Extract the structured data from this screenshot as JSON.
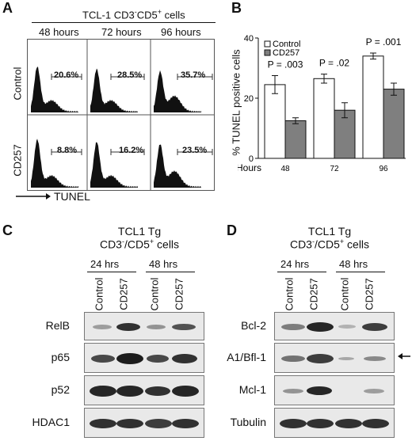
{
  "panelA": {
    "label": "A",
    "title_main": "TCL-1 CD3",
    "title_sup1": "-",
    "title_mid": "CD5",
    "title_sup2": "+",
    "title_end": "cells",
    "col_labels": [
      "48 hours",
      "72 hours",
      "96 hours"
    ],
    "row_labels": [
      "Control",
      "CD257"
    ],
    "percents": [
      [
        "20.6%",
        "28.5%",
        "35.7%"
      ],
      [
        "8.8%",
        "16.2%",
        "23.5%"
      ]
    ],
    "xaxis_label": "TUNEL"
  },
  "panelB": {
    "label": "B",
    "ylabel": "% TUNEL positive cells",
    "xlabel": "Hours",
    "legend": [
      "Control",
      "CD257"
    ],
    "p_values": [
      "P = .003",
      "P = .02",
      "P = .001"
    ],
    "ticks": [
      "0",
      "20",
      "40"
    ],
    "categories": [
      "48",
      "72",
      "96"
    ]
  },
  "chart_data": {
    "type": "bar",
    "categories": [
      "48",
      "72",
      "96"
    ],
    "series": [
      {
        "name": "Control",
        "values": [
          24.5,
          26.5,
          34
        ],
        "errors": [
          3,
          1.5,
          1
        ]
      },
      {
        "name": "CD257",
        "values": [
          12.5,
          16,
          23
        ],
        "errors": [
          1,
          2.5,
          2
        ]
      }
    ],
    "xlabel": "Hours",
    "ylabel": "% TUNEL positive cells",
    "ylim": [
      0,
      40
    ],
    "yticks": [
      0,
      20,
      40
    ],
    "annotations": [
      "P = .003",
      "P = .02",
      "P = .001"
    ],
    "legend_placement": "top-left",
    "colors": {
      "Control": "#ffffff",
      "CD257": "#7f7f7f"
    }
  },
  "panelC": {
    "label": "C",
    "title1": "TCL1 Tg",
    "title2_main": "CD3",
    "title2_sup1": "-",
    "title2_mid": "/CD5",
    "title2_sup2": "+",
    "title2_end": "cells",
    "time_labels": [
      "24 hrs",
      "48 hrs"
    ],
    "lane_labels": [
      "Control",
      "CD257",
      "Control",
      "CD257"
    ],
    "blots": [
      "RelB",
      "p65",
      "p52",
      "HDAC1"
    ]
  },
  "panelD": {
    "label": "D",
    "title1": "TCL1 Tg",
    "title2_main": "CD3",
    "title2_sup1": "-",
    "title2_mid": "/CD5",
    "title2_sup2": "+",
    "title2_end": "cells",
    "time_labels": [
      "24 hrs",
      "48 hrs"
    ],
    "lane_labels": [
      "Control",
      "CD257",
      "Control",
      "CD257"
    ],
    "blots": [
      "Bcl-2",
      "A1/Bfl-1",
      "Mcl-1",
      "Tubulin"
    ]
  }
}
